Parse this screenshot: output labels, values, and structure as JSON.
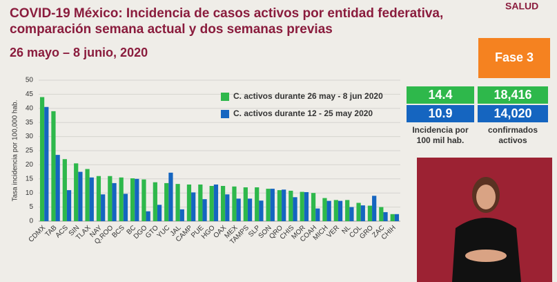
{
  "chart_data": {
    "type": "bar",
    "title": [
      "COVID-19 México: Incidencia de casos activos por entidad federativa,",
      "comparación semana actual y dos semanas previas"
    ],
    "subtitle": "26 mayo – 8 junio, 2020",
    "y_label": "Tasa incidencia por 100,000 hab.",
    "categories": [
      "CDMX",
      "TAB",
      "ACS",
      "SIN",
      "TLAX",
      "NAY",
      "Q.ROO",
      "BCS",
      "BC",
      "DGO",
      "GTO",
      "YUC",
      "JAL",
      "CAMP",
      "PUE",
      "HGO",
      "OAX",
      "MEX",
      "TAMPS",
      "SLP",
      "SON",
      "QRO",
      "CHIS",
      "MOR",
      "COAH",
      "MICH",
      "VER",
      "NL",
      "COL",
      "GRO",
      "ZAC",
      "CHIH"
    ],
    "series": [
      {
        "name": "C. activos durante 26 may - 8 jun 2020",
        "color": "#2eb84b",
        "values": [
          44,
          39,
          22,
          20.5,
          18.5,
          16,
          16,
          15.5,
          15.2,
          14.8,
          13.8,
          13.5,
          13.2,
          13,
          13,
          12.5,
          12.5,
          12.3,
          12,
          12,
          11.5,
          11,
          10.8,
          10.4,
          10,
          8.2,
          7.5,
          7.5,
          6.5,
          5.5,
          5,
          2.5
        ]
      },
      {
        "name": "C. activos durante  12 - 25 may 2020",
        "color": "#1565c0",
        "values": [
          40.5,
          23.5,
          11,
          17.5,
          15.5,
          9.5,
          13.5,
          9.7,
          15,
          3.5,
          5.8,
          17.2,
          4.2,
          10.2,
          7.8,
          13,
          9.5,
          8,
          8,
          7.3,
          11.5,
          11.2,
          8.5,
          10.3,
          4.5,
          7.2,
          7.2,
          5,
          5.6,
          9,
          3.2,
          2.5
        ]
      }
    ],
    "ylim": [
      0,
      50
    ],
    "yticks": [
      0,
      5,
      10,
      15,
      20,
      25,
      30,
      35,
      40,
      45,
      50
    ],
    "grid": true
  },
  "logo": "SALUD",
  "phase": "Fase 3",
  "stats": {
    "current": [
      "14.4",
      "18,416"
    ],
    "previous": [
      "10.9",
      "14,020"
    ],
    "captions": [
      [
        "Incidencia por",
        "100 mil hab."
      ],
      [
        "confirmados",
        "activos"
      ]
    ]
  }
}
